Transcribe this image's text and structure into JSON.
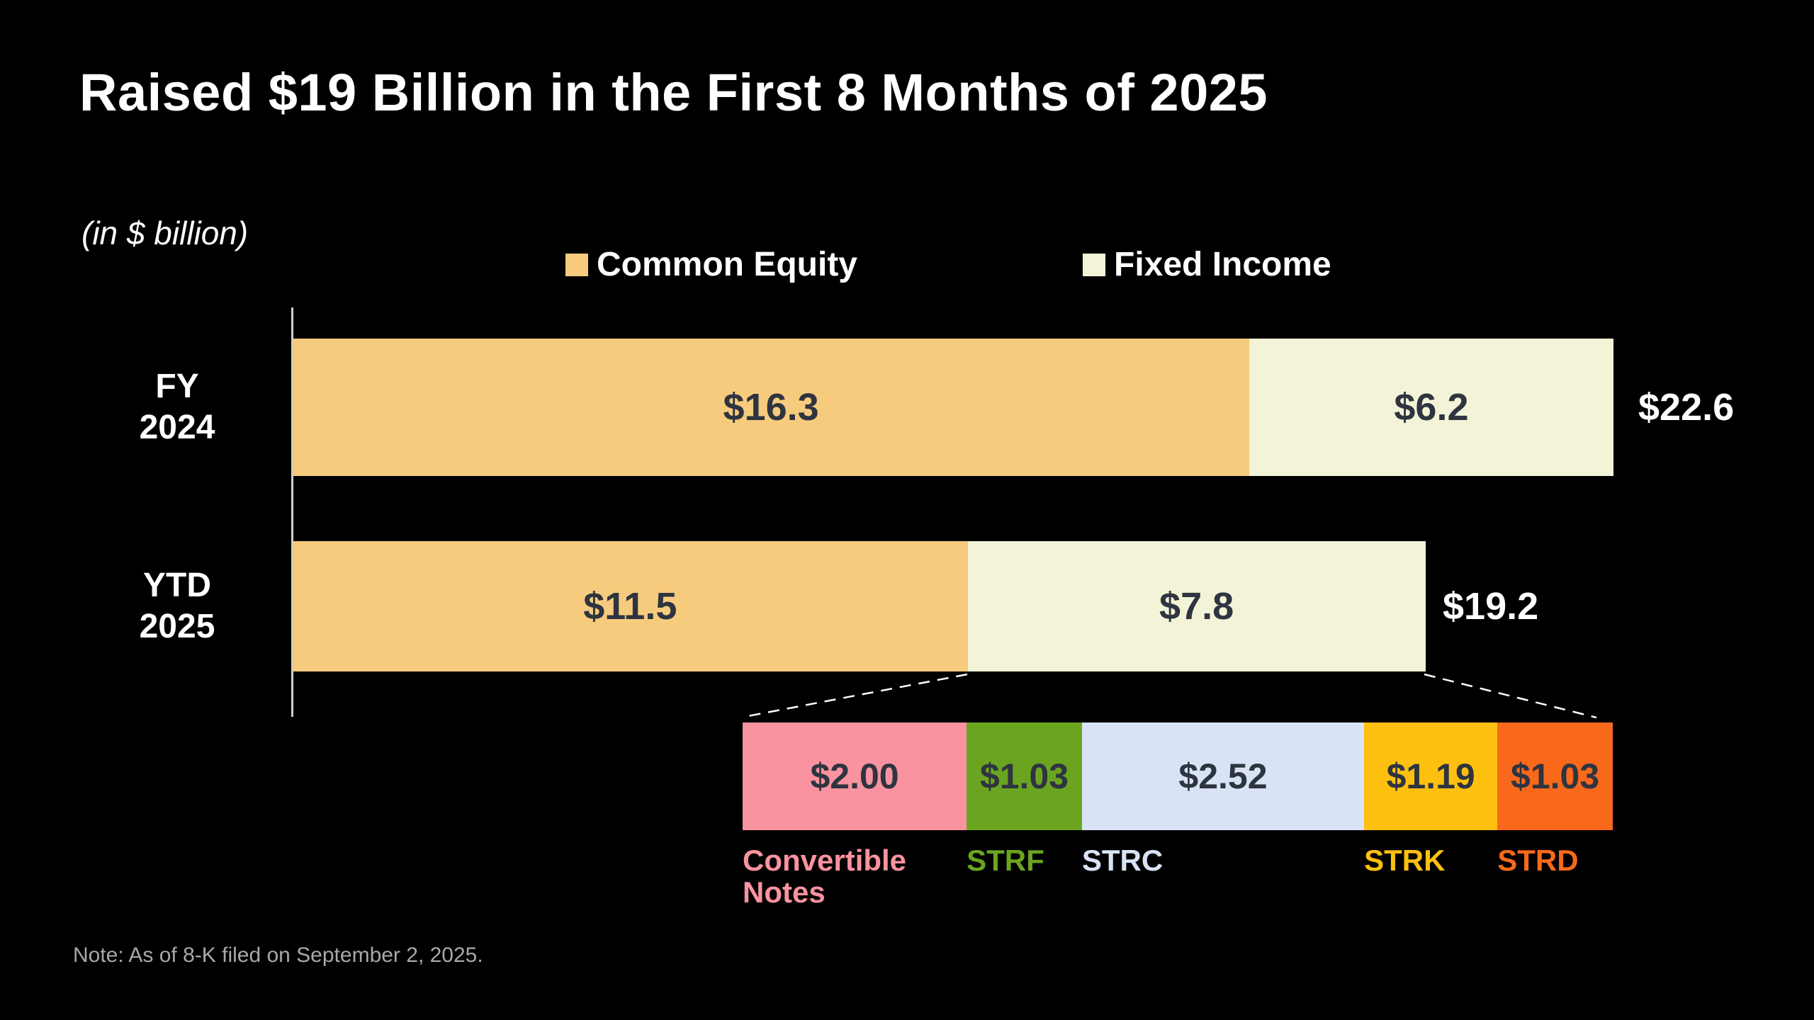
{
  "title": "Raised $19 Billion in the First 8 Months of 2025",
  "units_label": "(in $ billion)",
  "note": "Note: As of 8-K filed on September 2, 2025.",
  "colors": {
    "background": "#000000",
    "title_text": "#ffffff",
    "bar_value_text": "#2E3440",
    "total_value_text": "#ffffff",
    "axis_line": "#cfcfcf",
    "callout_dash": "#ffffff",
    "note_text": "#a8a8a8"
  },
  "legend": [
    {
      "label": "Common Equity",
      "color": "#F6CB7D"
    },
    {
      "label": "Fixed Income",
      "color": "#F3F3D7"
    }
  ],
  "chart_data": {
    "type": "bar",
    "orientation": "horizontal",
    "stacked": true,
    "title": "Raised $19 Billion in the First 8 Months of 2025",
    "units": "$ billion",
    "axis_max": 22.6,
    "grid": false,
    "legend_position": "top",
    "categories": [
      "FY 2024",
      "YTD 2025"
    ],
    "series": [
      {
        "name": "Common Equity",
        "color": "#F6CB7D",
        "values": [
          16.3,
          11.5
        ]
      },
      {
        "name": "Fixed Income",
        "color": "#F3F3D7",
        "values": [
          6.2,
          7.8
        ]
      }
    ],
    "totals": [
      22.6,
      19.2
    ],
    "breakdown": {
      "of": "YTD 2025 Fixed Income",
      "total": 7.77,
      "segments": [
        {
          "label": "Convertible Notes",
          "value": 2.0,
          "display": "$2.00",
          "color": "#F9939F"
        },
        {
          "label": "STRF",
          "value": 1.03,
          "display": "$1.03",
          "color": "#6BA520"
        },
        {
          "label": "STRC",
          "value": 2.52,
          "display": "$2.52",
          "color": "#D8E4F5"
        },
        {
          "label": "STRK",
          "value": 1.19,
          "display": "$1.19",
          "color": "#FEC00F"
        },
        {
          "label": "STRD",
          "value": 1.03,
          "display": "$1.03",
          "color": "#F8691C"
        }
      ]
    }
  },
  "rows": [
    {
      "label_line1": "FY",
      "label_line2": "2024",
      "common_display": "$16.3",
      "fixed_display": "$6.2",
      "total_display": "$22.6"
    },
    {
      "label_line1": "YTD",
      "label_line2": "2025",
      "common_display": "$11.5",
      "fixed_display": "$7.8",
      "total_display": "$19.2"
    }
  ]
}
